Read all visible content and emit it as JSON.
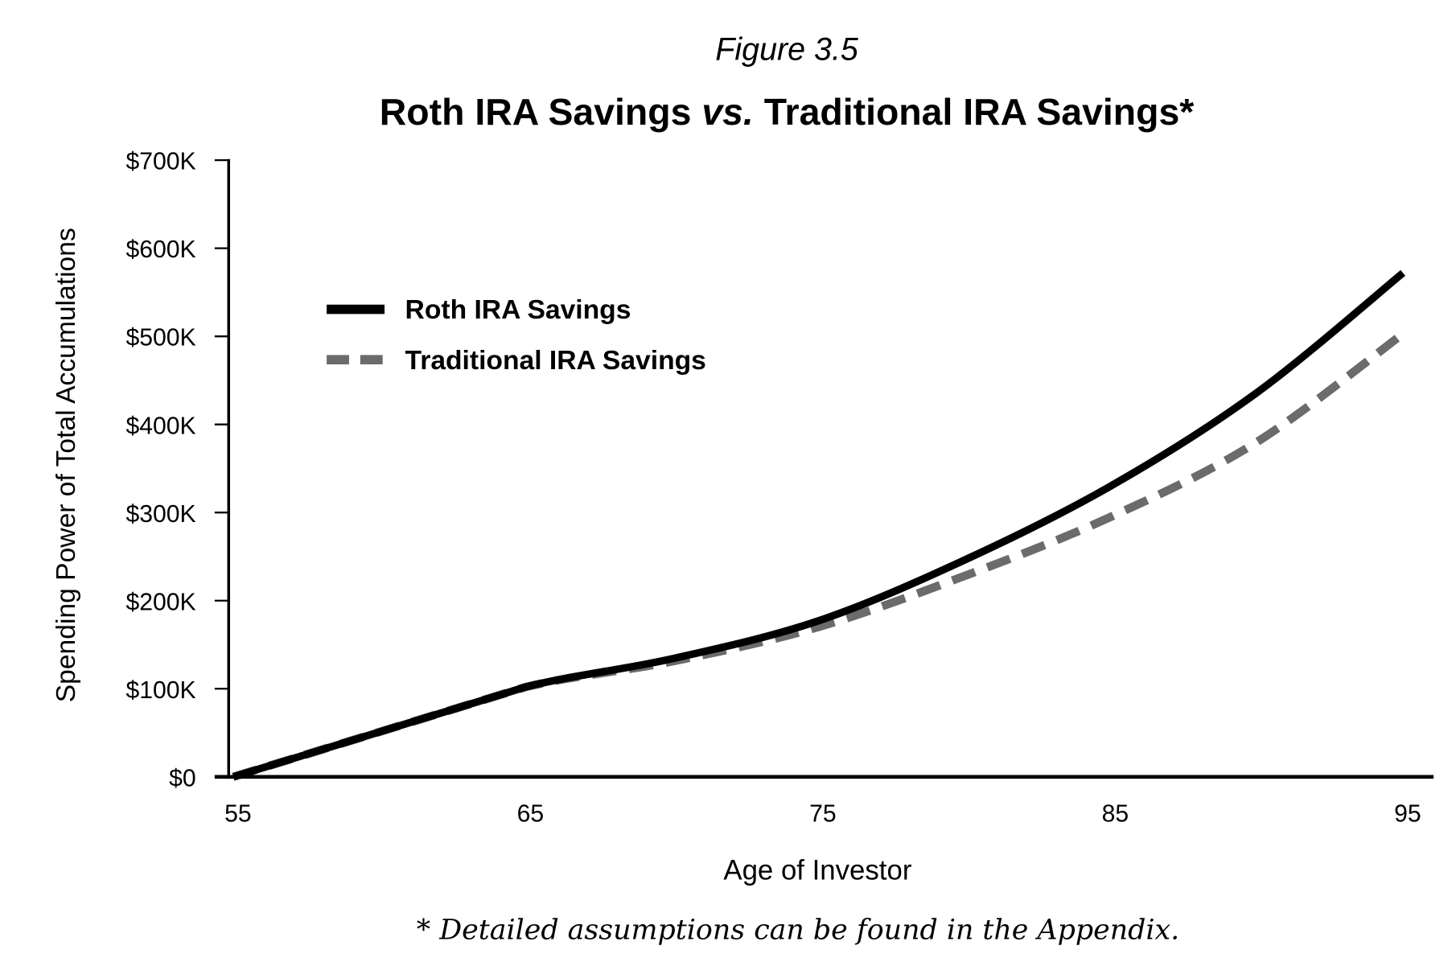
{
  "figure_label": "Figure 3.5",
  "title_part1": "Roth IRA Savings ",
  "title_vs": "vs.",
  "title_part2": " Traditional IRA Savings*",
  "footnote": "* Detailed assumptions can be found in the Appendix.",
  "chart_data": {
    "type": "line",
    "title": "Roth IRA Savings vs. Traditional IRA Savings*",
    "xlabel": "Age of Investor",
    "ylabel": "Spending Power of Total Accumulations",
    "xlim": [
      55,
      95
    ],
    "ylim": [
      0,
      700000
    ],
    "x_ticks": [
      55,
      65,
      75,
      85,
      95
    ],
    "x_tick_labels": [
      "55",
      "65",
      "75",
      "85",
      "95"
    ],
    "y_ticks": [
      0,
      100000,
      200000,
      300000,
      400000,
      500000,
      600000,
      700000
    ],
    "y_tick_labels": [
      "$0",
      "$100K",
      "$200K",
      "$300K",
      "$400K",
      "$500K",
      "$600K",
      "$700K"
    ],
    "grid": false,
    "legend_position": "top-left",
    "x": [
      55,
      60,
      65,
      70,
      75,
      80,
      85,
      90,
      95
    ],
    "series": [
      {
        "name": "Roth IRA Savings",
        "style": "solid",
        "color": "#000000",
        "values": [
          0,
          51000,
          102000,
          134000,
          177000,
          246000,
          330000,
          436000,
          572000
        ]
      },
      {
        "name": "Traditional IRA Savings",
        "style": "dashed",
        "color": "#6b6b6b",
        "values": [
          0,
          51000,
          102000,
          131000,
          170000,
          228000,
          295000,
          380000,
          503000
        ]
      }
    ]
  }
}
